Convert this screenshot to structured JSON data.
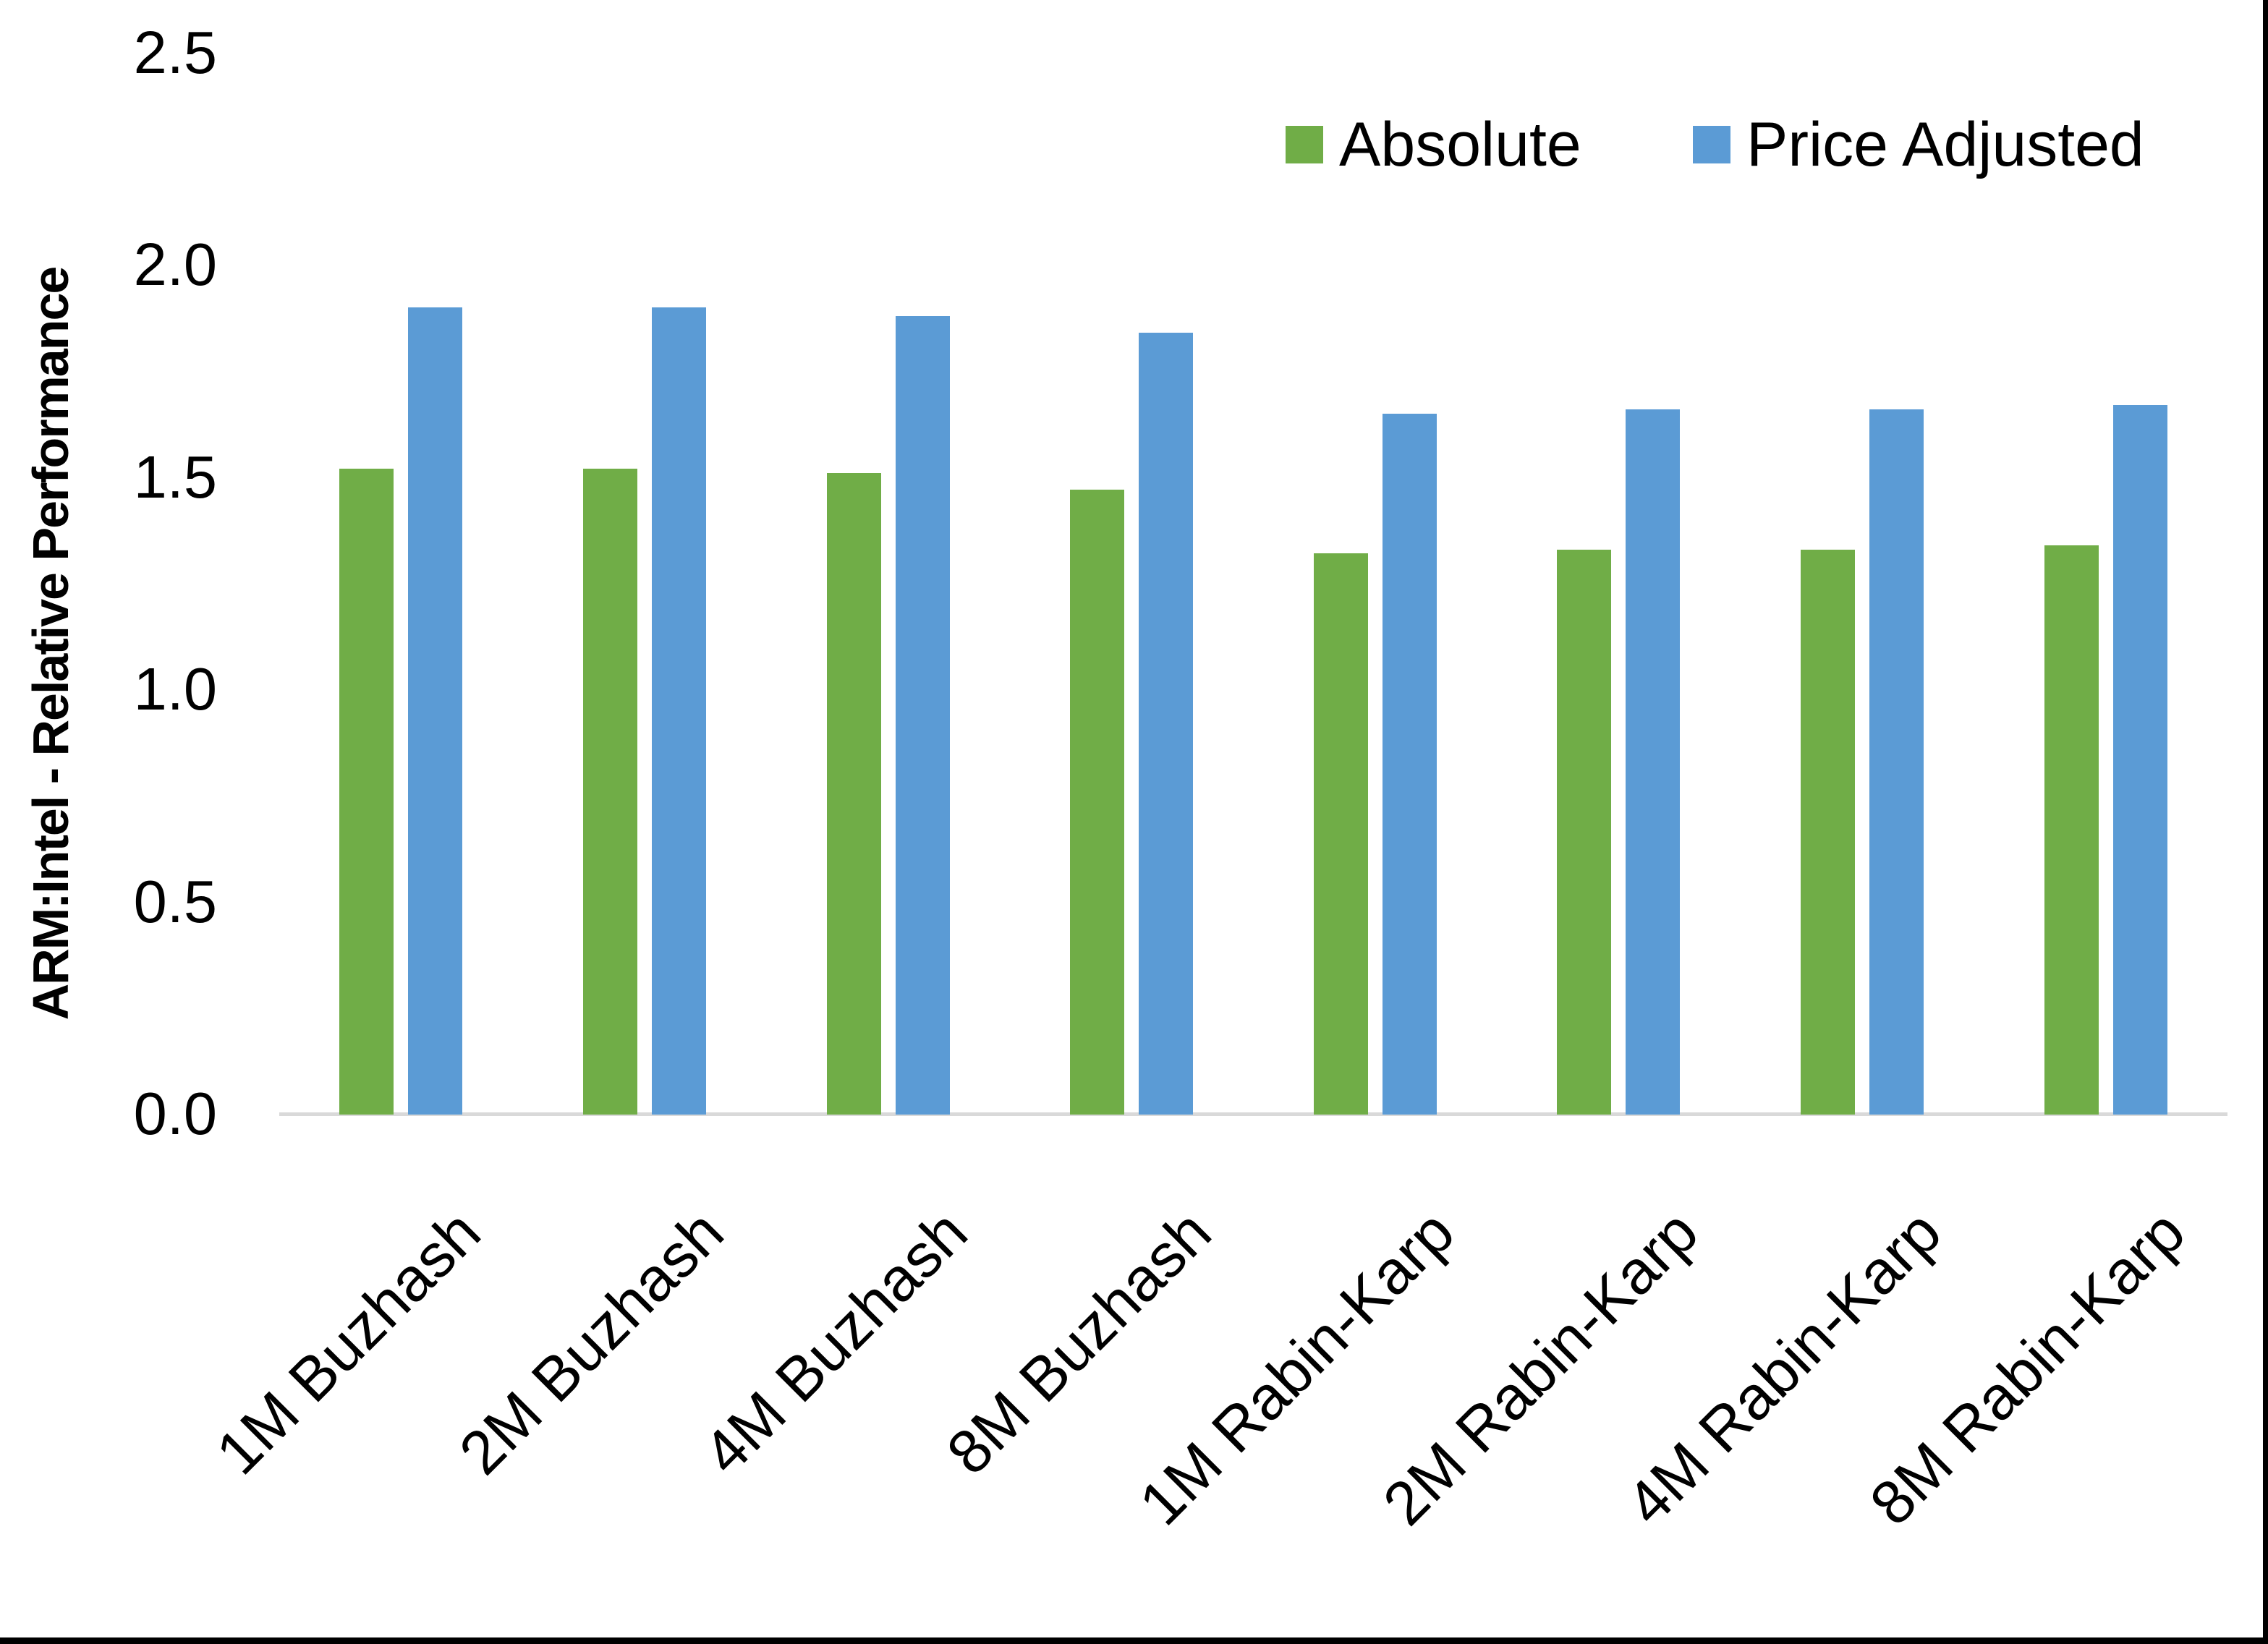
{
  "figure": {
    "background": "#FFFFFF",
    "edge_color": "#000000"
  },
  "chart_data": {
    "type": "bar",
    "title": "",
    "xlabel": "",
    "ylabel": "ARM:Intel - Relative Performance",
    "categories": [
      "1M Buzhash",
      "2M Buzhash",
      "4M Buzhash",
      "8M Buzhash",
      "1M Rabin-Karp",
      "2M Rabin-Karp",
      "4M Rabin-Karp",
      "8M Rabin-Karp"
    ],
    "series": [
      {
        "name": "Absolute",
        "color": "#70AD47",
        "values": [
          1.52,
          1.52,
          1.51,
          1.47,
          1.32,
          1.33,
          1.33,
          1.34
        ]
      },
      {
        "name": "Price Adjusted",
        "color": "#5B9BD5",
        "values": [
          1.9,
          1.9,
          1.88,
          1.84,
          1.65,
          1.66,
          1.66,
          1.67
        ]
      }
    ],
    "ylim": [
      0,
      2.5
    ],
    "y_ticks": [
      "0.0",
      "0.5",
      "1.0",
      "1.5",
      "2.0",
      "2.5"
    ],
    "grid": "off",
    "legend_position": "top-right",
    "axis_line_color": "#D9D9D9",
    "x_label_rotation_deg": -45
  }
}
